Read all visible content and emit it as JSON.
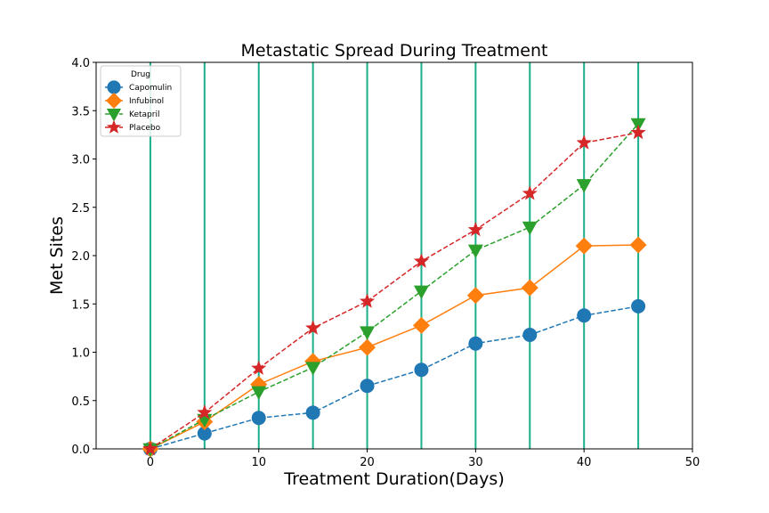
{
  "chart_data": {
    "type": "line",
    "title": "Metastatic Spread During Treatment",
    "xlabel": "Treatment Duration(Days)",
    "ylabel": "Met Sites",
    "xlim": [
      -5,
      50
    ],
    "ylim": [
      0,
      4
    ],
    "xticks": [
      0,
      10,
      20,
      30,
      40,
      50
    ],
    "yticks": [
      0.0,
      0.5,
      1.0,
      1.5,
      2.0,
      2.5,
      3.0,
      3.5,
      4.0
    ],
    "vertical_lines_at": [
      0,
      5,
      10,
      15,
      20,
      25,
      30,
      35,
      40,
      45
    ],
    "vertical_line_color": "#1aaf8a",
    "legend": {
      "title": "Drug",
      "placement": "upper-left"
    },
    "x": [
      0,
      5,
      10,
      15,
      20,
      25,
      30,
      35,
      40,
      45
    ],
    "series": [
      {
        "name": "Capomulin",
        "color": "#1f77b4",
        "marker": "circle",
        "linestyle": "dashed",
        "values": [
          0.0,
          0.16,
          0.32,
          0.375,
          0.652,
          0.818,
          1.09,
          1.18,
          1.38,
          1.476
        ]
      },
      {
        "name": "Infubinol",
        "color": "#ff7f0e",
        "marker": "diamond",
        "linestyle": "solid",
        "values": [
          0.0,
          0.28,
          0.667,
          0.905,
          1.05,
          1.278,
          1.588,
          1.667,
          2.1,
          2.111
        ]
      },
      {
        "name": "Ketapril",
        "color": "#2ca02c",
        "marker": "triangle-down",
        "linestyle": "dashed",
        "values": [
          0.0,
          0.304,
          0.59,
          0.842,
          1.21,
          1.632,
          2.056,
          2.294,
          2.733,
          3.364
        ]
      },
      {
        "name": "Placebo",
        "color": "#d62728",
        "marker": "star",
        "linestyle": "dashed",
        "values": [
          0.0,
          0.375,
          0.833,
          1.25,
          1.526,
          1.941,
          2.267,
          2.643,
          3.167,
          3.273
        ]
      }
    ]
  }
}
